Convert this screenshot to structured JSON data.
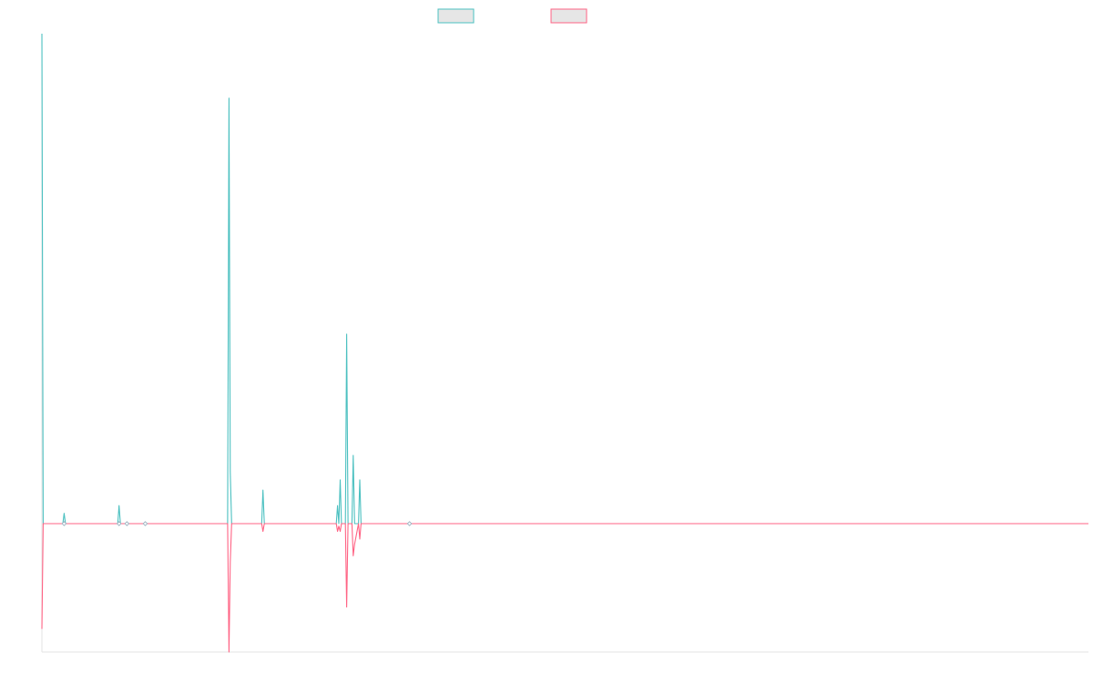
{
  "chart_data": {
    "type": "line",
    "title": "",
    "xlabel": "",
    "ylabel": "",
    "grid": false,
    "legend_position": "top-center",
    "ylim": [
      -100,
      380
    ],
    "series": [
      {
        "name": "",
        "color": "#4bc0c0",
        "points": [
          [
            0,
            380
          ],
          [
            1,
            0
          ],
          [
            16,
            0
          ],
          [
            17,
            8
          ],
          [
            18,
            0
          ],
          [
            58,
            0
          ],
          [
            59,
            14
          ],
          [
            60,
            0
          ],
          [
            142,
            0
          ],
          [
            143,
            330
          ],
          [
            144,
            40
          ],
          [
            145,
            0
          ],
          [
            168,
            0
          ],
          [
            169,
            26
          ],
          [
            170,
            0
          ],
          [
            225,
            0
          ],
          [
            226,
            14
          ],
          [
            227,
            0
          ],
          [
            228,
            34
          ],
          [
            229,
            0
          ],
          [
            232,
            0
          ],
          [
            233,
            147
          ],
          [
            234,
            0
          ],
          [
            237,
            0
          ],
          [
            238,
            53
          ],
          [
            239,
            0
          ],
          [
            242,
            0
          ],
          [
            243,
            34
          ],
          [
            244,
            0
          ],
          [
            800,
            0
          ]
        ]
      },
      {
        "name": "",
        "color": "#ff6384",
        "points": [
          [
            0,
            -82
          ],
          [
            1,
            0
          ],
          [
            142,
            0
          ],
          [
            143,
            -100
          ],
          [
            144,
            -30
          ],
          [
            145,
            0
          ],
          [
            168,
            0
          ],
          [
            169,
            -6
          ],
          [
            170,
            0
          ],
          [
            225,
            0
          ],
          [
            226,
            -6
          ],
          [
            227,
            -2
          ],
          [
            228,
            -6
          ],
          [
            229,
            0
          ],
          [
            232,
            0
          ],
          [
            233,
            -65
          ],
          [
            234,
            0
          ],
          [
            237,
            0
          ],
          [
            238,
            -25
          ],
          [
            239,
            -16
          ],
          [
            242,
            0
          ],
          [
            243,
            -12
          ],
          [
            244,
            0
          ],
          [
            800,
            0
          ]
        ]
      }
    ],
    "markers": [
      {
        "x": 17,
        "y": 0
      },
      {
        "x": 59,
        "y": 0
      },
      {
        "x": 65,
        "y": 0
      },
      {
        "x": 79,
        "y": 0
      },
      {
        "x": 281,
        "y": 0
      }
    ]
  }
}
